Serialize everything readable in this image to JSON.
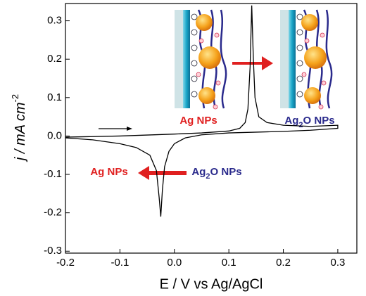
{
  "chart_data": {
    "type": "line",
    "xlabel": "E / V vs Ag/AgCl",
    "ylabel": "j / mA cm",
    "ylabel_superscript": "-2",
    "xlim": [
      -0.2,
      0.335
    ],
    "ylim": [
      -0.305,
      0.345
    ],
    "xticks": [
      -0.2,
      -0.1,
      {
        "value": 0,
        "label": "0.0"
      },
      0.1,
      0.2,
      0.3
    ],
    "yticks": [
      -0.3,
      -0.2,
      -0.1,
      {
        "value": 0,
        "label": "0.0"
      },
      0.1,
      0.2,
      0.3
    ],
    "series": [
      {
        "color": "#000000",
        "x": [
          -0.2,
          -0.1,
          0.0,
          0.05,
          0.1,
          0.12,
          0.13,
          0.135,
          0.139,
          0.142,
          0.145,
          0.148,
          0.155,
          0.17,
          0.2,
          0.25,
          0.3,
          0.3,
          0.25,
          0.2,
          0.1,
          0.05,
          0.02,
          0.0,
          -0.01,
          -0.018,
          -0.022,
          -0.025,
          -0.028,
          -0.033,
          -0.045,
          -0.07,
          -0.1,
          -0.15,
          -0.2
        ],
        "values": [
          -0.003,
          0.0,
          0.005,
          0.008,
          0.013,
          0.02,
          0.035,
          0.07,
          0.18,
          0.34,
          0.2,
          0.1,
          0.05,
          0.035,
          0.028,
          0.025,
          0.028,
          0.02,
          0.015,
          0.012,
          0.008,
          0.003,
          -0.005,
          -0.02,
          -0.04,
          -0.08,
          -0.14,
          -0.21,
          -0.16,
          -0.09,
          -0.05,
          -0.03,
          -0.02,
          -0.01,
          -0.005
        ]
      }
    ],
    "annotations": {
      "top_left": "Ag NPs",
      "top_right": [
        "Ag",
        "2",
        "O NPs"
      ],
      "bottom_left": "Ag NPs",
      "bottom_right": [
        "Ag",
        "2",
        "O NPs"
      ]
    }
  }
}
